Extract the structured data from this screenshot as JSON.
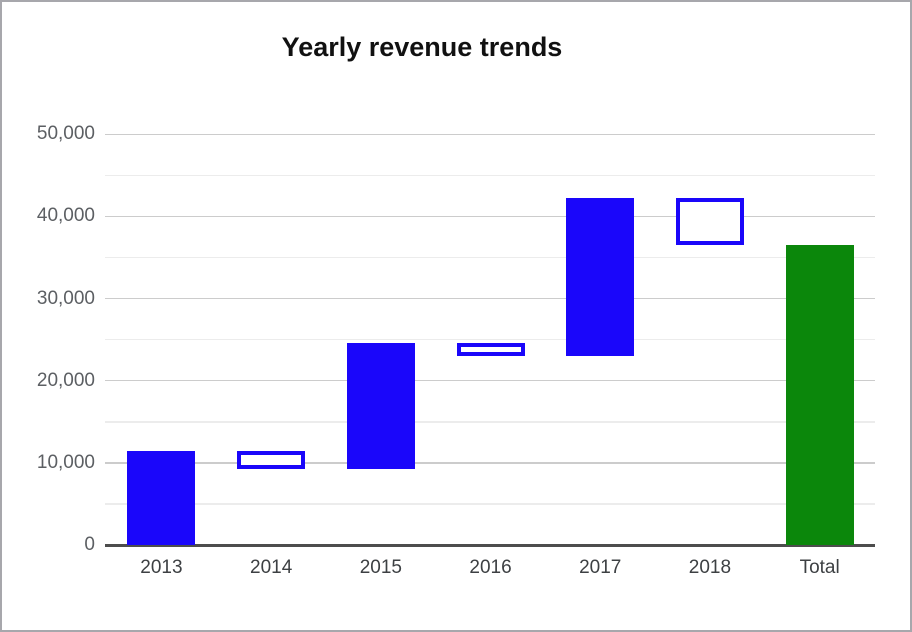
{
  "window": {
    "background": "#ffffff",
    "border_color": "#a7a7ac"
  },
  "chart_data": {
    "type": "waterfall",
    "title": "Yearly revenue trends",
    "categories": [
      "2013",
      "2014",
      "2015",
      "2016",
      "2017",
      "2018",
      "Total"
    ],
    "bars": [
      {
        "label": "2013",
        "kind": "increase",
        "start": 0,
        "end": 11400,
        "delta": 11400
      },
      {
        "label": "2014",
        "kind": "decrease",
        "start": 11400,
        "end": 9300,
        "delta": -2100
      },
      {
        "label": "2015",
        "kind": "increase",
        "start": 9300,
        "end": 24600,
        "delta": 15300
      },
      {
        "label": "2016",
        "kind": "decrease",
        "start": 24600,
        "end": 23000,
        "delta": -1600
      },
      {
        "label": "2017",
        "kind": "increase",
        "start": 23000,
        "end": 42300,
        "delta": 19300
      },
      {
        "label": "2018",
        "kind": "decrease",
        "start": 42300,
        "end": 36500,
        "delta": -5800
      },
      {
        "label": "Total",
        "kind": "total",
        "start": 0,
        "end": 36500,
        "delta": 36500
      }
    ],
    "y_axis": {
      "min": 0,
      "max": 50000,
      "major_step": 10000,
      "minor_step": 5000,
      "tick_labels": [
        "0",
        "10,000",
        "20,000",
        "30,000",
        "40,000",
        "50,000"
      ]
    },
    "x_axis": {
      "labels": [
        "2013",
        "2014",
        "2015",
        "2016",
        "2017",
        "2018",
        "Total"
      ]
    },
    "legend": "none",
    "grid": true,
    "colors": {
      "increase_fill": "#1a06fa",
      "decrease_fill": "#ffffff",
      "decrease_border": "#1a06fa",
      "total_fill": "#0b870b",
      "grid_major": "#cccccc",
      "grid_minor": "#ececec",
      "axis_line": "#4d4d4d",
      "y_label_color": "#5c5f63",
      "x_label_color": "#3d4043",
      "title_color": "#111111"
    }
  }
}
